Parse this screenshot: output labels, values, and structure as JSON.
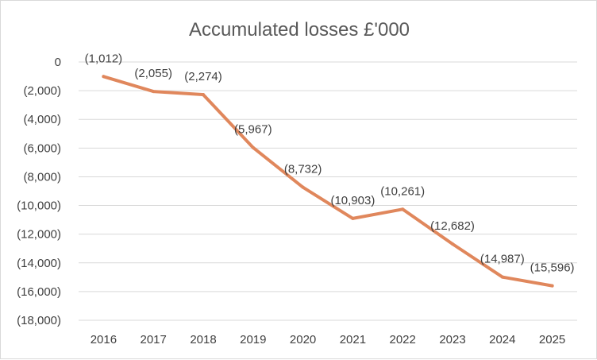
{
  "chart_data": {
    "type": "line",
    "title": "Accumulated losses £'000",
    "xlabel": "",
    "ylabel": "",
    "categories": [
      "2016",
      "2017",
      "2018",
      "2019",
      "2020",
      "2021",
      "2022",
      "2023",
      "2024",
      "2025"
    ],
    "series": [
      {
        "values": [
          -1012,
          -2055,
          -2274,
          -5967,
          -8732,
          -10903,
          -10261,
          -12682,
          -14987,
          -15596
        ],
        "data_labels": [
          "(1,012)",
          "(2,055)",
          "(2,274)",
          "(5,967)",
          "(8,732)",
          "(10,903)",
          "(10,261)",
          "(12,682)",
          "(14,987)",
          "(15,596)"
        ],
        "color": "#e0875c"
      }
    ],
    "ylim": [
      -18000,
      0
    ],
    "y_ticks": [
      0,
      -2000,
      -4000,
      -6000,
      -8000,
      -10000,
      -12000,
      -14000,
      -16000,
      -18000
    ],
    "y_tick_labels": [
      "0",
      "(2,000)",
      "(4,000)",
      "(6,000)",
      "(8,000)",
      "(10,000)",
      "(12,000)",
      "(14,000)",
      "(16,000)",
      "(18,000)"
    ],
    "grid": true,
    "legend": "none"
  }
}
